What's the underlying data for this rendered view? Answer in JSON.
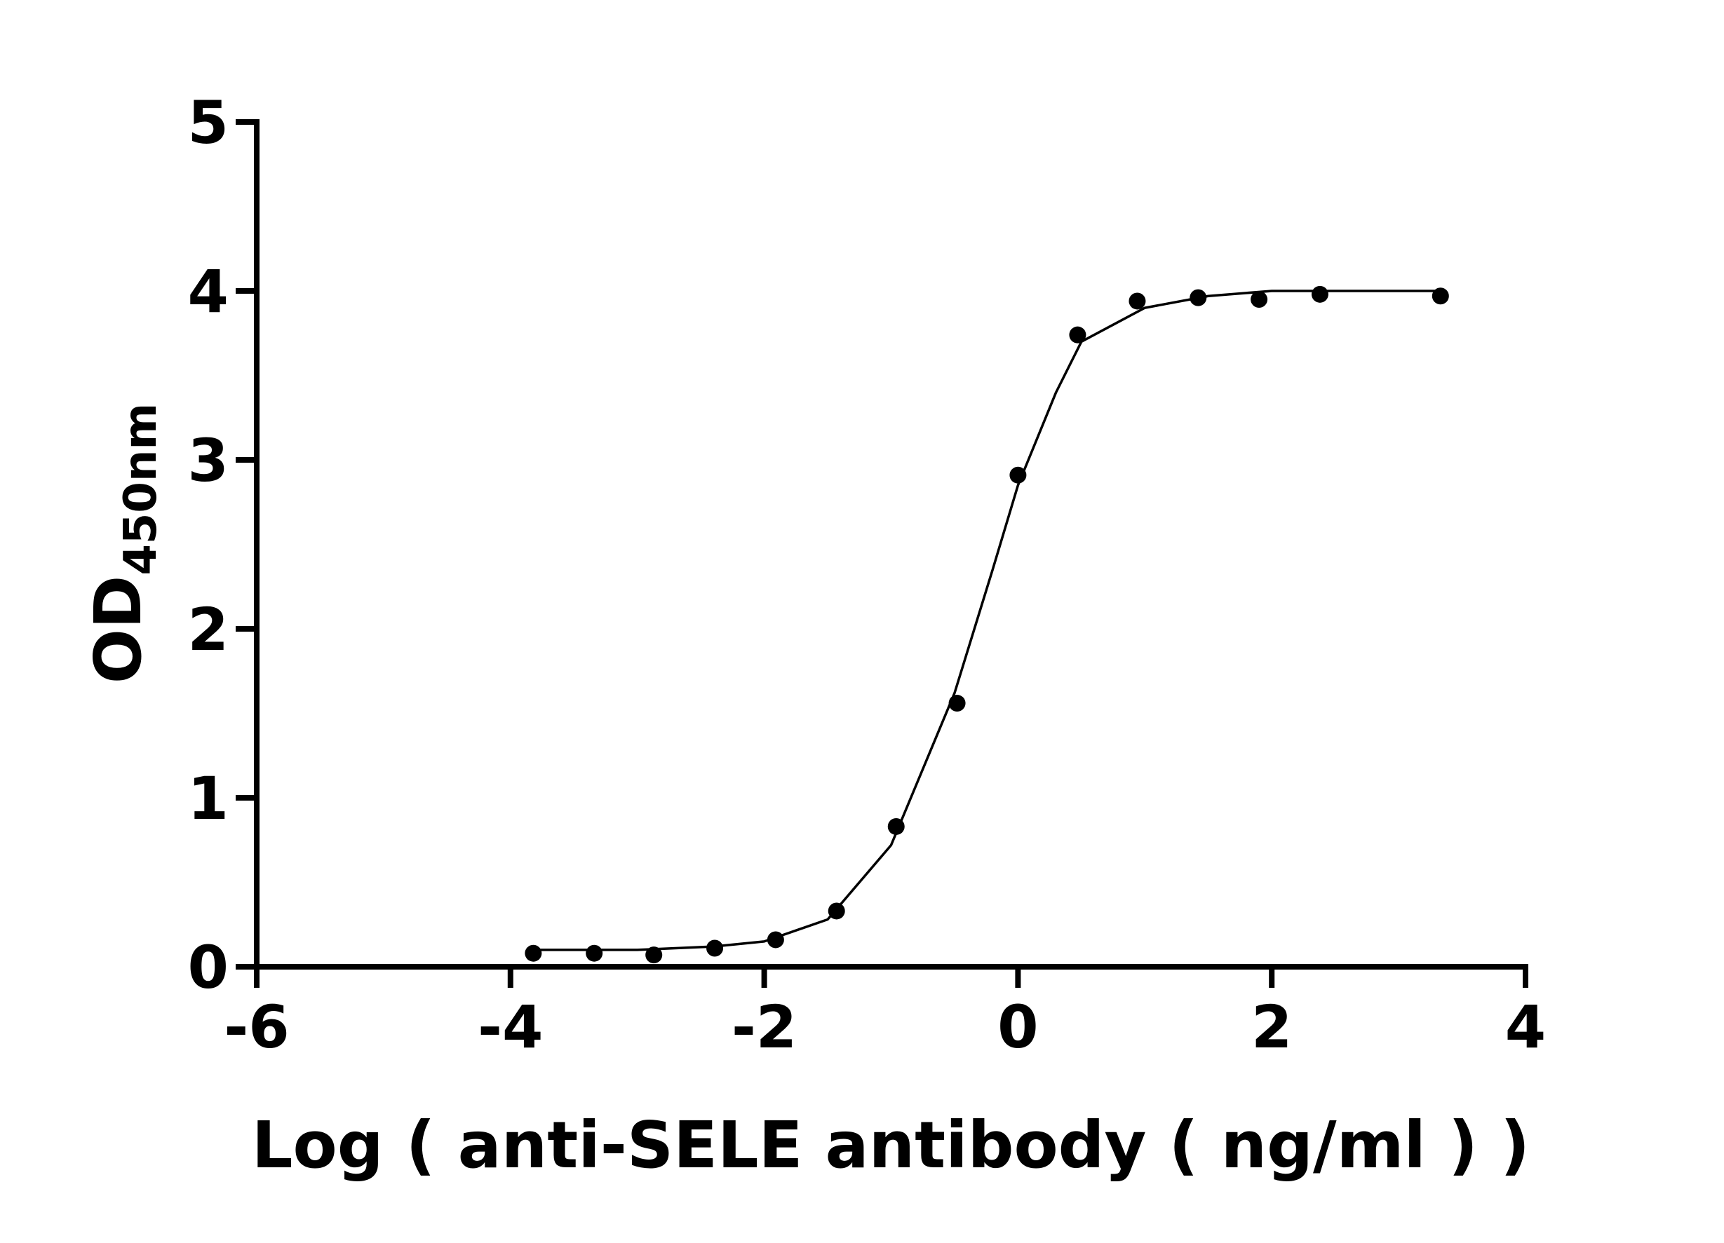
{
  "chart_data": {
    "type": "scatter",
    "xlabel": "Log ( anti-SELE antibody ( ng/ml )    )",
    "ylabel": "OD",
    "ylabel_subscript": "450nm",
    "xlim": [
      -6,
      4
    ],
    "ylim": [
      0,
      5
    ],
    "xticks": [
      -6,
      -4,
      -2,
      0,
      2,
      4
    ],
    "yticks": [
      0,
      1,
      2,
      3,
      4,
      5
    ],
    "color": "#000000",
    "series": [
      {
        "x": [
          -3.82,
          -3.34,
          -2.87,
          -2.39,
          -1.91,
          -1.43,
          -0.96,
          -0.48,
          0.0,
          0.47,
          0.94,
          1.42,
          1.9,
          2.38,
          3.33
        ],
        "values": [
          0.08,
          0.08,
          0.07,
          0.11,
          0.16,
          0.33,
          0.83,
          1.56,
          2.91,
          3.74,
          3.94,
          3.96,
          3.95,
          3.98,
          3.97
        ],
        "marker": "circle"
      },
      {
        "x": [
          -3.82,
          -3.0,
          -2.4,
          -2.0,
          -1.5,
          -1.0,
          -0.5,
          -0.2,
          0.0,
          0.3,
          0.5,
          1.0,
          1.5,
          2.0,
          3.33
        ],
        "values": [
          0.1,
          0.1,
          0.12,
          0.15,
          0.28,
          0.72,
          1.62,
          2.35,
          2.85,
          3.4,
          3.7,
          3.9,
          3.97,
          4.0,
          4.0
        ],
        "marker": "line"
      }
    ]
  }
}
